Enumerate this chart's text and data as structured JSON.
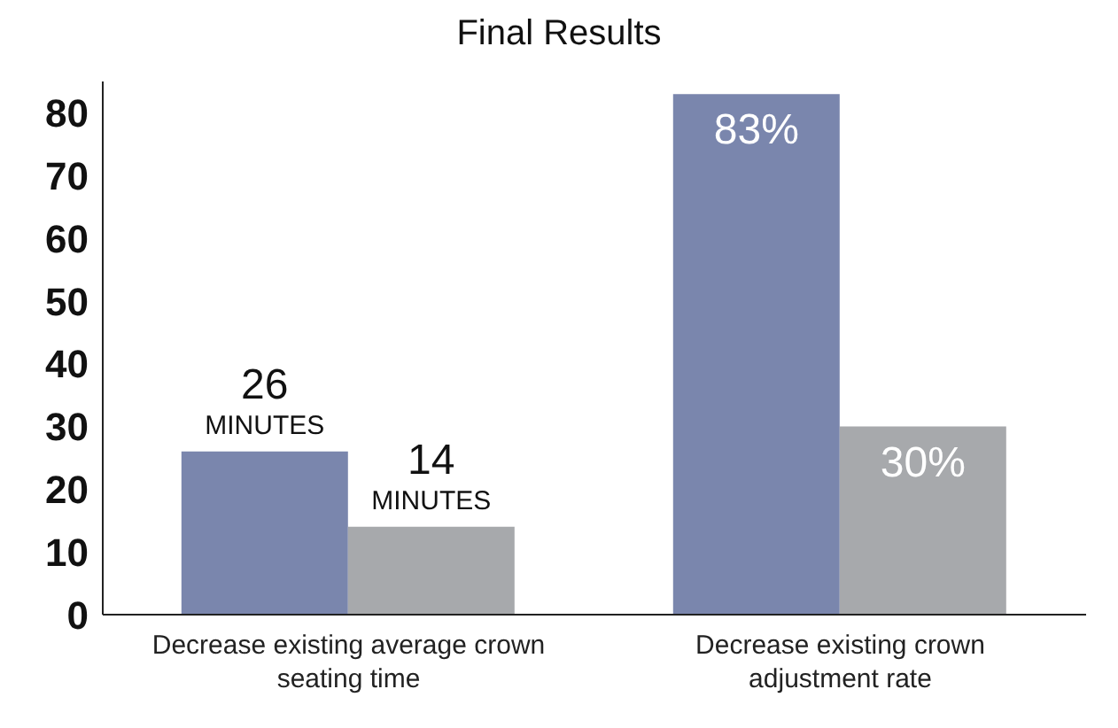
{
  "chart_data": {
    "type": "bar",
    "title": "Final Results",
    "categories": [
      "Decrease existing average crown seating time",
      "Decrease existing crown adjustment rate"
    ],
    "series": [
      {
        "color": "#7a86ad",
        "values": [
          26,
          83
        ],
        "value_labels": [
          "26 MINUTES",
          "83%"
        ]
      },
      {
        "color": "#a7a9ac",
        "values": [
          14,
          30
        ],
        "value_labels": [
          "14 MINUTES",
          "30%"
        ]
      }
    ],
    "ylim": [
      0,
      85
    ],
    "yticks": [
      0,
      10,
      20,
      30,
      40,
      50,
      60,
      70,
      80
    ],
    "grid": false,
    "legend": false
  }
}
